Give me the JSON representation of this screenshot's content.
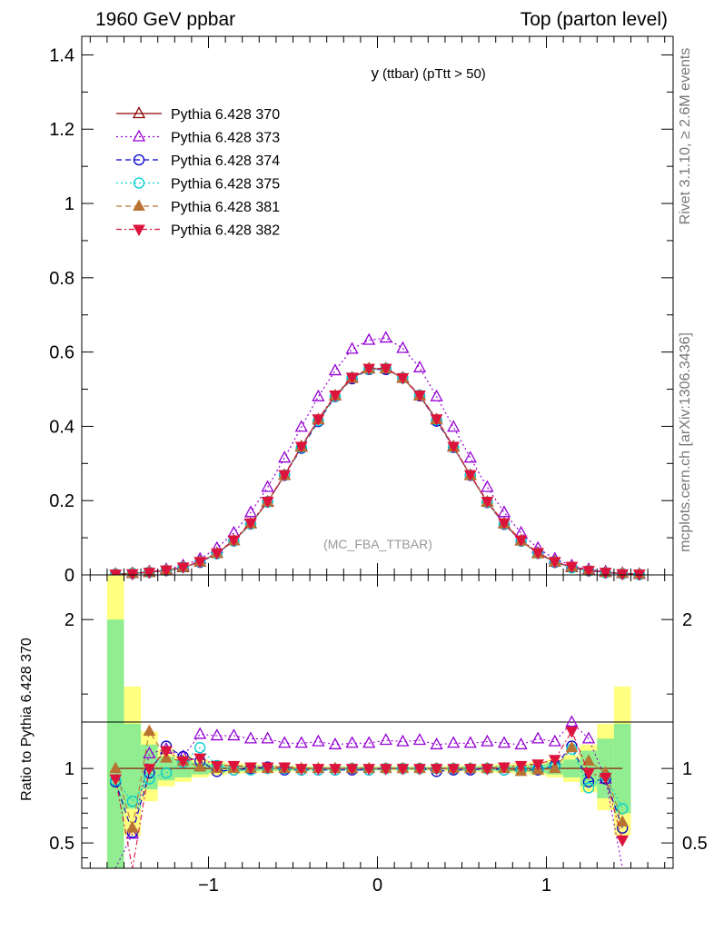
{
  "header": {
    "left": "1960 GeV ppbar",
    "right": "Top (parton level)"
  },
  "side": {
    "rivet": "Rivet 3.1.10, ≥ 2.6M events",
    "ref": "mcplots.cern.ch [arXiv:1306.3436]"
  },
  "main_title": {
    "var": "y",
    "desc": "(ttbar)  (pTtt > 50)"
  },
  "watermark": "(MC_FBA_TTBAR)",
  "ratio_ylabel": "Ratio to Pythia 6.428 370",
  "colors": {
    "band_inner": "#90ee90",
    "band_outer": "#ffff80"
  },
  "chart_data": [
    {
      "type": "line",
      "title": "y (ttbar) (pTtt > 50)",
      "xlim": [
        -1.75,
        1.75
      ],
      "ylim": [
        0,
        1.45
      ],
      "yticks": [
        0,
        0.2,
        0.4,
        0.6,
        0.8,
        1,
        1.2,
        1.4
      ],
      "ytick_labels": [
        "0",
        "0.2",
        "0.4",
        "0.6",
        "0.8",
        "1",
        "1.2",
        "1.4"
      ],
      "x": [
        -1.55,
        -1.45,
        -1.35,
        -1.25,
        -1.15,
        -1.05,
        -0.95,
        -0.85,
        -0.75,
        -0.65,
        -0.55,
        -0.45,
        -0.35,
        -0.25,
        -0.15,
        -0.05,
        0.05,
        0.15,
        0.25,
        0.35,
        0.45,
        0.55,
        0.65,
        0.75,
        0.85,
        0.95,
        1.05,
        1.15,
        1.25,
        1.35,
        1.45,
        1.55
      ],
      "series": [
        {
          "name": "Pythia 6.428 370",
          "color": "#8b0000",
          "marker": "triangle-open",
          "dash": "",
          "values": [
            0.002,
            0.004,
            0.007,
            0.012,
            0.02,
            0.035,
            0.058,
            0.092,
            0.138,
            0.196,
            0.268,
            0.345,
            0.418,
            0.482,
            0.53,
            0.555,
            0.555,
            0.53,
            0.482,
            0.418,
            0.345,
            0.268,
            0.196,
            0.138,
            0.092,
            0.058,
            0.035,
            0.02,
            0.012,
            0.007,
            0.004,
            0.002
          ]
        },
        {
          "name": "Pythia 6.428 373",
          "color": "#9400d3",
          "marker": "triangle-open",
          "dash": "2,3",
          "values": [
            0.002,
            0.004,
            0.009,
            0.015,
            0.025,
            0.043,
            0.072,
            0.113,
            0.168,
            0.236,
            0.315,
            0.398,
            0.48,
            0.55,
            0.608,
            0.632,
            0.638,
            0.61,
            0.558,
            0.48,
            0.398,
            0.315,
            0.236,
            0.168,
            0.113,
            0.072,
            0.043,
            0.025,
            0.015,
            0.009,
            0.004,
            0.002
          ]
        },
        {
          "name": "Pythia 6.428 374",
          "color": "#0000cd",
          "marker": "circle-open",
          "dash": "6,4",
          "values": [
            0.002,
            0.004,
            0.007,
            0.012,
            0.021,
            0.034,
            0.057,
            0.091,
            0.137,
            0.197,
            0.268,
            0.341,
            0.413,
            0.48,
            0.528,
            0.553,
            0.553,
            0.53,
            0.482,
            0.414,
            0.343,
            0.268,
            0.195,
            0.136,
            0.091,
            0.058,
            0.034,
            0.02,
            0.011,
            0.006,
            0.003,
            0.001
          ]
        },
        {
          "name": "Pythia 6.428 375",
          "color": "#00ced1",
          "marker": "circle-open",
          "dash": "2,3",
          "values": [
            0.002,
            0.004,
            0.007,
            0.012,
            0.021,
            0.035,
            0.057,
            0.091,
            0.137,
            0.196,
            0.269,
            0.343,
            0.415,
            0.481,
            0.531,
            0.554,
            0.556,
            0.53,
            0.484,
            0.417,
            0.344,
            0.269,
            0.196,
            0.137,
            0.091,
            0.058,
            0.035,
            0.019,
            0.011,
            0.006,
            0.003,
            0.001
          ]
        },
        {
          "name": "Pythia 6.428 381",
          "color": "#b87333",
          "marker": "triangle-filled",
          "dash": "6,4",
          "values": [
            0.002,
            0.004,
            0.008,
            0.013,
            0.021,
            0.035,
            0.058,
            0.092,
            0.138,
            0.197,
            0.268,
            0.344,
            0.418,
            0.482,
            0.529,
            0.555,
            0.555,
            0.529,
            0.482,
            0.418,
            0.344,
            0.268,
            0.196,
            0.137,
            0.091,
            0.057,
            0.035,
            0.021,
            0.012,
            0.007,
            0.004,
            0.002
          ]
        },
        {
          "name": "Pythia 6.428 382",
          "color": "#dc143c",
          "marker": "triangledown-filled",
          "dash": "6,3,2,3",
          "values": [
            0.002,
            0.003,
            0.007,
            0.013,
            0.021,
            0.036,
            0.059,
            0.094,
            0.14,
            0.198,
            0.27,
            0.346,
            0.42,
            0.484,
            0.532,
            0.556,
            0.556,
            0.531,
            0.484,
            0.42,
            0.346,
            0.27,
            0.198,
            0.14,
            0.094,
            0.06,
            0.036,
            0.023,
            0.012,
            0.007,
            0.003,
            0.002
          ]
        }
      ]
    },
    {
      "type": "line",
      "ylabel": "Ratio to Pythia 6.428 370",
      "xlim": [
        -1.75,
        1.75
      ],
      "ylim": [
        0.33,
        2.3
      ],
      "xticks": [
        -1,
        0,
        1
      ],
      "xtick_labels": [
        "−1",
        "0",
        "1"
      ],
      "yticks": [
        0.5,
        1,
        2
      ],
      "ytick_labels": [
        "0.5",
        "1",
        "2"
      ],
      "x": [
        -1.55,
        -1.45,
        -1.35,
        -1.25,
        -1.15,
        -1.05,
        -0.95,
        -0.85,
        -0.75,
        -0.65,
        -0.55,
        -0.45,
        -0.35,
        -0.25,
        -0.15,
        -0.05,
        0.05,
        0.15,
        0.25,
        0.35,
        0.45,
        0.55,
        0.65,
        0.75,
        0.85,
        0.95,
        1.05,
        1.15,
        1.25,
        1.35,
        1.45
      ],
      "band": {
        "inner": [
          [
            0.33,
            2.0
          ],
          [
            0.73,
            1.3
          ],
          [
            0.86,
            1.16
          ],
          [
            0.92,
            1.08
          ],
          [
            0.94,
            1.06
          ],
          [
            0.96,
            1.04
          ],
          [
            0.97,
            1.03
          ],
          [
            0.98,
            1.02
          ],
          [
            0.98,
            1.02
          ],
          [
            0.985,
            1.015
          ],
          [
            0.985,
            1.015
          ],
          [
            0.99,
            1.01
          ],
          [
            0.99,
            1.01
          ],
          [
            0.99,
            1.01
          ],
          [
            0.99,
            1.01
          ],
          [
            0.99,
            1.01
          ],
          [
            0.99,
            1.01
          ],
          [
            0.99,
            1.01
          ],
          [
            0.99,
            1.01
          ],
          [
            0.99,
            1.01
          ],
          [
            0.99,
            1.01
          ],
          [
            0.985,
            1.015
          ],
          [
            0.985,
            1.015
          ],
          [
            0.98,
            1.02
          ],
          [
            0.98,
            1.02
          ],
          [
            0.97,
            1.03
          ],
          [
            0.96,
            1.04
          ],
          [
            0.94,
            1.06
          ],
          [
            0.88,
            1.12
          ],
          [
            0.8,
            1.2
          ],
          [
            0.7,
            1.3
          ]
        ],
        "outer": [
          [
            0.33,
            2.3
          ],
          [
            0.55,
            1.55
          ],
          [
            0.78,
            1.25
          ],
          [
            0.88,
            1.13
          ],
          [
            0.91,
            1.09
          ],
          [
            0.94,
            1.06
          ],
          [
            0.955,
            1.045
          ],
          [
            0.965,
            1.035
          ],
          [
            0.97,
            1.03
          ],
          [
            0.975,
            1.025
          ],
          [
            0.98,
            1.02
          ],
          [
            0.98,
            1.02
          ],
          [
            0.985,
            1.015
          ],
          [
            0.985,
            1.015
          ],
          [
            0.985,
            1.015
          ],
          [
            0.985,
            1.015
          ],
          [
            0.985,
            1.015
          ],
          [
            0.985,
            1.015
          ],
          [
            0.985,
            1.015
          ],
          [
            0.985,
            1.015
          ],
          [
            0.98,
            1.02
          ],
          [
            0.98,
            1.02
          ],
          [
            0.975,
            1.025
          ],
          [
            0.97,
            1.03
          ],
          [
            0.965,
            1.035
          ],
          [
            0.955,
            1.045
          ],
          [
            0.94,
            1.06
          ],
          [
            0.91,
            1.09
          ],
          [
            0.84,
            1.16
          ],
          [
            0.72,
            1.3
          ],
          [
            0.55,
            1.55
          ]
        ]
      },
      "series": [
        {
          "name": "Pythia 6.428 370",
          "values": [
            1,
            1,
            1,
            1,
            1,
            1,
            1,
            1,
            1,
            1,
            1,
            1,
            1,
            1,
            1,
            1,
            1,
            1,
            1,
            1,
            1,
            1,
            1,
            1,
            1,
            1,
            1,
            1,
            1,
            1,
            1
          ]
        },
        {
          "name": "Pythia 6.428 373",
          "values": [
            0.33,
            0.56,
            1.1,
            1.13,
            1.08,
            1.23,
            1.22,
            1.22,
            1.2,
            1.2,
            1.17,
            1.17,
            1.18,
            1.16,
            1.17,
            1.17,
            1.19,
            1.18,
            1.19,
            1.16,
            1.17,
            1.17,
            1.18,
            1.17,
            1.16,
            1.2,
            1.18,
            1.31,
            1.2,
            0.93,
            0.33
          ]
        },
        {
          "name": "Pythia 6.428 374",
          "values": [
            0.91,
            0.57,
            0.97,
            1.15,
            1.08,
            1.05,
            0.98,
            0.99,
            1.0,
            1.01,
            0.99,
            0.99,
            0.99,
            0.99,
            0.99,
            0.99,
            1.0,
            1.0,
            1.0,
            0.98,
            0.99,
            0.99,
            1.0,
            0.99,
            0.99,
            0.99,
            1.02,
            1.15,
            0.91,
            0.93,
            0.6
          ]
        },
        {
          "name": "Pythia 6.428 375",
          "values": [
            0.92,
            0.78,
            0.93,
            0.97,
            1.04,
            1.14,
            1.02,
            0.99,
            0.99,
            1.0,
            1.0,
            0.99,
            0.99,
            0.99,
            1.0,
            0.99,
            1.0,
            1.0,
            1.0,
            1.0,
            1.0,
            1.0,
            1.0,
            0.99,
            0.99,
            1.0,
            1.01,
            1.13,
            0.87,
            0.95,
            0.73
          ]
        },
        {
          "name": "Pythia 6.428 381",
          "values": [
            1.0,
            0.6,
            1.25,
            1.07,
            1.05,
            1.01,
            1.0,
            1.0,
            1.0,
            1.0,
            1.0,
            1.0,
            1.0,
            1.0,
            1.0,
            1.0,
            1.0,
            1.0,
            1.0,
            1.0,
            1.0,
            1.0,
            1.0,
            1.0,
            0.98,
            0.99,
            1.0,
            1.14,
            1.05,
            0.97,
            0.64
          ]
        },
        {
          "name": "Pythia 6.428 382",
          "values": [
            0.93,
            0.33,
            1.0,
            1.12,
            1.05,
            1.07,
            1.02,
            1.02,
            1.01,
            1.01,
            1.01,
            1.0,
            1.0,
            1.0,
            1.0,
            1.0,
            1.0,
            1.0,
            1.0,
            1.0,
            1.0,
            1.0,
            1.0,
            1.01,
            1.02,
            1.03,
            1.06,
            1.25,
            0.97,
            0.94,
            0.52
          ]
        }
      ]
    }
  ]
}
